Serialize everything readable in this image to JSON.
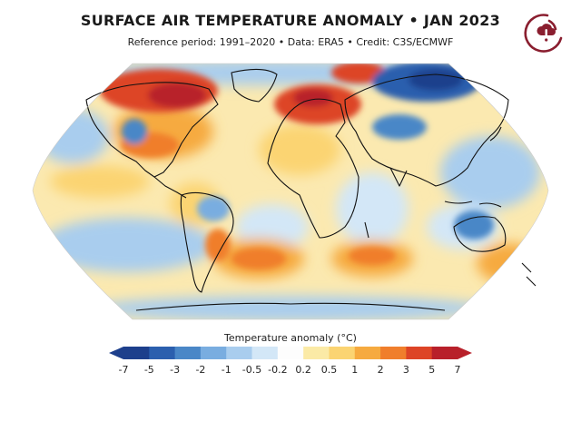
{
  "title": "SURFACE AIR TEMPERATURE ANOMALY • JAN 2023",
  "subtitle": "Reference period: 1991–2020 • Data: ERA5 • Credit: C3S/ECMWF",
  "colorbar": {
    "title": "Temperature anomaly (°C)",
    "tick_labels": [
      "-7",
      "-5",
      "-3",
      "-2",
      "-1",
      "-0.5",
      "-0.2",
      "0.2",
      "0.5",
      "1",
      "2",
      "3",
      "5",
      "7"
    ],
    "bin_colors": [
      "#1d3f8c",
      "#2b5fae",
      "#4a87c7",
      "#79ade0",
      "#a9cdee",
      "#d3e7f7",
      "#fdfdfd",
      "#fbeaa6",
      "#fbd472",
      "#f6aa3f",
      "#f07e2c",
      "#dd4426",
      "#b8202a"
    ],
    "under_color": "#1d3f8c",
    "over_color": "#b8202a"
  },
  "map": {
    "projection": "Robinson",
    "ocean_base_color": "#fbe9b0",
    "coastline_color": "#111111"
  },
  "logo": {
    "name": "c3s-climate-thermometer-logo",
    "color": "#8a1e2f"
  }
}
